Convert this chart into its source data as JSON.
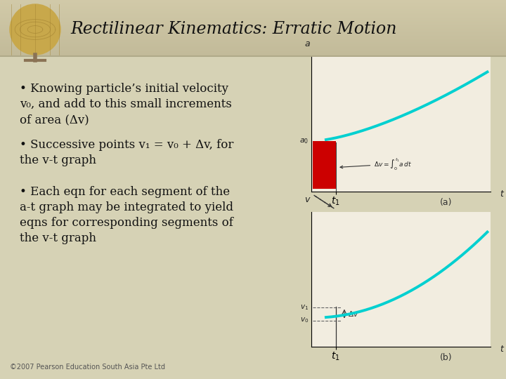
{
  "title": "Rectilinear Kinematics: Erratic Motion",
  "slide_bg": "#d6d2b5",
  "header_bg_bottom": "#bfbb9e",
  "header_bg_top": "#cdc9af",
  "bullet1_line1": "• Knowing particle’s initial velocity",
  "bullet1_line2": "v₀, and add to this small increments",
  "bullet1_line3": "of area (Δv)",
  "bullet2_line1": "• Successive points v₁ = v₀ + Δv, for",
  "bullet2_line2": "the v-t graph",
  "bullet3_line1": "• Each eqn for each segment of the",
  "bullet3_line2": "a-t graph may be integrated to yield",
  "bullet3_line3": "eqns for corresponding segments of",
  "bullet3_line4": "the v-t graph",
  "footer": "©2007 Pearson Education South Asia Pte Ltd",
  "graph_bg": "#f2ede0",
  "curve_color": "#00d0d0",
  "rect_color": "#cc0000"
}
